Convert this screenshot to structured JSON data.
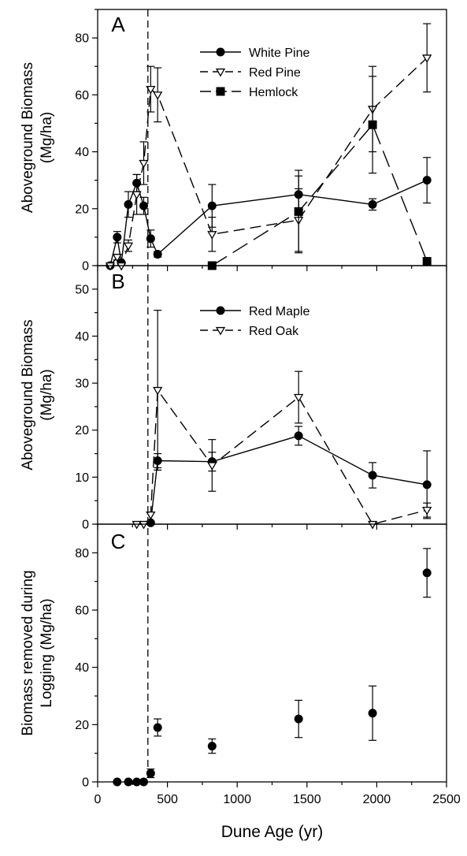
{
  "chart_data": [
    {
      "panel": "A",
      "type": "line",
      "ylabel_lines": [
        "Aboveground Biomass",
        "(Mg/ha)"
      ],
      "xlim": [
        0,
        2500
      ],
      "ylim": [
        0,
        90
      ],
      "yticks": [
        0,
        20,
        40,
        60,
        80
      ],
      "xticks": [],
      "legend_position": "top-center",
      "series": [
        {
          "name": "White Pine",
          "marker": "filled-circle",
          "line": "solid",
          "points": [
            {
              "x": 90,
              "y": 0
            },
            {
              "x": 140,
              "y": 10,
              "err": 2
            },
            {
              "x": 170,
              "y": 1
            },
            {
              "x": 220,
              "y": 21.5,
              "err": 4.5
            },
            {
              "x": 280,
              "y": 29,
              "err": 3
            },
            {
              "x": 330,
              "y": 21,
              "err": 3
            },
            {
              "x": 380,
              "y": 9.5,
              "err": 3
            },
            {
              "x": 430,
              "y": 4,
              "err": 1
            },
            {
              "x": 820,
              "y": 21,
              "err": 7.5
            },
            {
              "x": 1440,
              "y": 25,
              "err": 6.5
            },
            {
              "x": 1970,
              "y": 21.5,
              "err": 2
            },
            {
              "x": 2360,
              "y": 30,
              "err": 8
            }
          ]
        },
        {
          "name": "Red Pine",
          "marker": "open-triangle-down",
          "line": "dashed",
          "points": [
            {
              "x": 90,
              "y": 0
            },
            {
              "x": 140,
              "y": 3,
              "err": 1
            },
            {
              "x": 170,
              "y": 0
            },
            {
              "x": 220,
              "y": 7,
              "err": 2
            },
            {
              "x": 280,
              "y": 25,
              "err": 7
            },
            {
              "x": 330,
              "y": 36,
              "err": 7.5
            },
            {
              "x": 380,
              "y": 62,
              "err": 8
            },
            {
              "x": 430,
              "y": 60,
              "err": 9.5
            },
            {
              "x": 820,
              "y": 11,
              "err": 6
            },
            {
              "x": 1440,
              "y": 16,
              "err": 11
            },
            {
              "x": 1970,
              "y": 55,
              "err": 15
            },
            {
              "x": 2360,
              "y": 73,
              "err": 12
            }
          ]
        },
        {
          "name": "Hemlock",
          "marker": "filled-square",
          "line": "long-dash",
          "points": [
            {
              "x": 820,
              "y": 0
            },
            {
              "x": 1440,
              "y": 19,
              "err": 14.5
            },
            {
              "x": 1970,
              "y": 49.5,
              "err": 17
            },
            {
              "x": 2360,
              "y": 1.5,
              "err": 1
            }
          ]
        }
      ]
    },
    {
      "panel": "B",
      "type": "line",
      "ylabel_lines": [
        "Aboveground Biomass",
        "(Mg/ha)"
      ],
      "xlim": [
        0,
        2500
      ],
      "ylim": [
        0,
        55
      ],
      "yticks": [
        0,
        10,
        20,
        30,
        40,
        50
      ],
      "xticks": [],
      "legend_position": "top-center",
      "series": [
        {
          "name": "Red Maple",
          "marker": "filled-circle",
          "line": "solid",
          "points": [
            {
              "x": 380,
              "y": 0.3
            },
            {
              "x": 430,
              "y": 13.5,
              "err": 1.5
            },
            {
              "x": 820,
              "y": 13.3,
              "err": 2
            },
            {
              "x": 1440,
              "y": 18.8,
              "err": 2
            },
            {
              "x": 1970,
              "y": 10.4,
              "err": 2.7
            },
            {
              "x": 2360,
              "y": 8.4,
              "err": 7.2
            }
          ]
        },
        {
          "name": "Red Oak",
          "marker": "open-triangle-down",
          "line": "dashed",
          "points": [
            {
              "x": 280,
              "y": 0
            },
            {
              "x": 330,
              "y": 0
            },
            {
              "x": 380,
              "y": 2
            },
            {
              "x": 430,
              "y": 28.5,
              "err": 17
            },
            {
              "x": 820,
              "y": 12.5,
              "err": 5.5
            },
            {
              "x": 1440,
              "y": 27,
              "err": 5.5
            },
            {
              "x": 1970,
              "y": 0
            },
            {
              "x": 2360,
              "y": 3,
              "err": 1.5
            }
          ]
        }
      ]
    },
    {
      "panel": "C",
      "type": "scatter",
      "ylabel_lines": [
        "Biomass removed during",
        "Logging (Mg/ha)"
      ],
      "xlabel": "Dune Age (yr)",
      "xlim": [
        0,
        2500
      ],
      "ylim": [
        0,
        90
      ],
      "yticks": [
        0,
        20,
        40,
        60,
        80
      ],
      "xticks": [
        0,
        500,
        1000,
        1500,
        2000,
        2500
      ],
      "series": [
        {
          "marker": "filled-circle",
          "points": [
            {
              "x": 140,
              "y": 0
            },
            {
              "x": 220,
              "y": 0
            },
            {
              "x": 280,
              "y": 0
            },
            {
              "x": 330,
              "y": 0
            },
            {
              "x": 380,
              "y": 3,
              "err": 1.5
            },
            {
              "x": 430,
              "y": 19,
              "err": 3
            },
            {
              "x": 820,
              "y": 12.5,
              "err": 2.5
            },
            {
              "x": 1440,
              "y": 22,
              "err": 6.5
            },
            {
              "x": 1970,
              "y": 24,
              "err": 9.5
            },
            {
              "x": 2360,
              "y": 73,
              "err": 8.5
            }
          ]
        }
      ]
    }
  ],
  "vline_x": 360,
  "colors": {
    "ink": "#000000",
    "background": "#ffffff"
  }
}
